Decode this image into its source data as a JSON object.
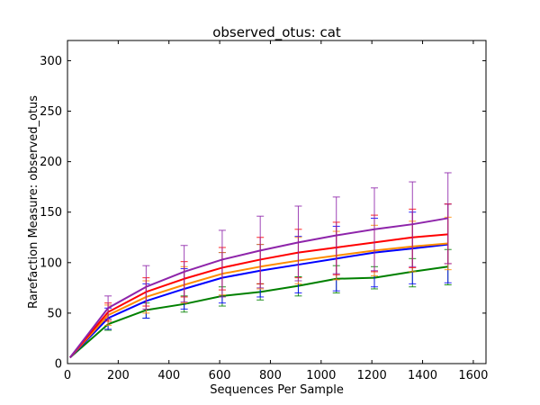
{
  "chart_data": {
    "type": "line",
    "title": "observed_otus: cat",
    "xlabel": "Sequences Per Sample",
    "ylabel": "Rarefaction Measure: observed_otus",
    "xlim": [
      0,
      1650
    ],
    "ylim": [
      0,
      320
    ],
    "xticks": [
      0,
      200,
      400,
      600,
      800,
      1000,
      1200,
      1400,
      1600
    ],
    "yticks": [
      0,
      50,
      100,
      150,
      200,
      250,
      300
    ],
    "grid": false,
    "legend": "none",
    "x": [
      10,
      160,
      310,
      460,
      610,
      760,
      910,
      1060,
      1210,
      1360,
      1500
    ],
    "series": [
      {
        "color": "#008000",
        "values": [
          6,
          39,
          53,
          59,
          67,
          71,
          77,
          84,
          85,
          91,
          96
        ],
        "error_low": [
          6,
          33,
          45,
          51,
          57,
          63,
          67,
          70,
          74,
          76,
          78
        ],
        "error_high": [
          6,
          44,
          60,
          67,
          76,
          79,
          86,
          97,
          96,
          104,
          113
        ]
      },
      {
        "color": "#0000ff",
        "values": [
          6,
          45,
          62,
          74,
          85,
          92,
          98,
          104,
          110,
          114,
          118
        ],
        "error_low": [
          6,
          34,
          45,
          54,
          60,
          66,
          70,
          72,
          76,
          79,
          80
        ],
        "error_high": [
          6,
          55,
          79,
          94,
          110,
          118,
          126,
          136,
          144,
          150,
          158
        ]
      },
      {
        "color": "#ff8c00",
        "values": [
          6,
          48,
          66,
          78,
          89,
          96,
          102,
          107,
          112,
          116,
          119
        ],
        "error_low": [
          6,
          38,
          50,
          60,
          68,
          74,
          79,
          83,
          87,
          91,
          93
        ],
        "error_high": [
          6,
          58,
          82,
          96,
          110,
          118,
          125,
          131,
          137,
          141,
          145
        ]
      },
      {
        "color": "#ff0000",
        "values": [
          6,
          51,
          71,
          84,
          95,
          103,
          110,
          115,
          120,
          125,
          128
        ],
        "error_low": [
          6,
          42,
          57,
          66,
          73,
          79,
          85,
          88,
          91,
          95,
          99
        ],
        "error_high": [
          6,
          60,
          85,
          101,
          115,
          125,
          133,
          140,
          147,
          153,
          158
        ]
      },
      {
        "color": "#8e24aa",
        "values": [
          6,
          55,
          76,
          91,
          103,
          112,
          120,
          127,
          133,
          138,
          144
        ],
        "error_low": [
          6,
          44,
          54,
          61,
          66,
          75,
          82,
          89,
          92,
          96,
          99
        ],
        "error_high": [
          6,
          67,
          97,
          117,
          132,
          146,
          156,
          165,
          174,
          180,
          189
        ]
      }
    ]
  }
}
